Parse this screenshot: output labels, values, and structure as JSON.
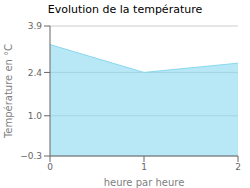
{
  "chart_data": {
    "type": "area",
    "title": "Evolution de la température",
    "x_label": "heure par heure",
    "y_label": "Température en °C",
    "x": [
      0,
      0.5,
      1.0,
      1.5,
      2.0
    ],
    "values": [
      3.3,
      2.85,
      2.4,
      2.55,
      2.7
    ],
    "color": "#88d8ee",
    "xlim": [
      0,
      2
    ],
    "ylim": [
      -0.3,
      3.9
    ],
    "xticks": [
      0,
      1,
      2
    ],
    "yticks": [
      {
        "value": -0.3,
        "label": "−0.3"
      },
      {
        "value": 1.0,
        "label": "1.0"
      },
      {
        "value": 2.4,
        "label": "2.4"
      },
      {
        "value": 3.9,
        "label": "3.9"
      }
    ],
    "grid": true
  }
}
